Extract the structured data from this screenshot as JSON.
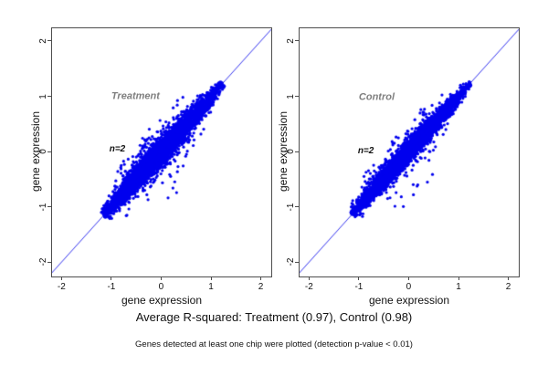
{
  "caption": "Average R-squared: Treatment (0.97), Control (0.98)",
  "footnote": "Genes detected at least one chip were plotted (detection p-value < 0.01)",
  "colors": {
    "background": "#ffffff",
    "point": "#0000ee",
    "ref_line": "#3434ee",
    "frame": "#4d4d4d",
    "tick_text": "#111111",
    "group_label": "#7f7f7f",
    "n_label": "#111111"
  },
  "chart_data": [
    {
      "type": "scatter",
      "group": "Treatment",
      "xlabel": "gene expression",
      "ylabel": "gene expression",
      "xlim": [
        -2.19,
        2.21
      ],
      "ylim": [
        -2.26,
        2.23
      ],
      "xticks": [
        -2,
        -1,
        0,
        1,
        2
      ],
      "yticks": [
        -2,
        -1,
        0,
        1,
        2
      ],
      "grid": false,
      "legend": "none",
      "reference_line": "y = x (identity)",
      "avg_r_squared": 0.97,
      "n_chips": 2,
      "data_extent_along_diagonal": [
        -1.16,
        1.24
      ],
      "annotations": [
        {
          "role": "group-label",
          "text": "Treatment",
          "x": -1.0,
          "y": 1.0,
          "size": 11
        },
        {
          "role": "n-label",
          "text": "n=2",
          "x": -1.04,
          "y": 0.04,
          "size": 10
        }
      ],
      "cloud": {
        "seed": 20240,
        "n": 4200,
        "t_mean": -0.08,
        "t_sd": 0.62,
        "t_min": -1.16,
        "t_max": 1.24,
        "width_max": 0.16,
        "width_min": 0.015,
        "width_span": 1.28,
        "noise": 1.0,
        "upper_outliers": 40,
        "lower_outliers": 24,
        "point_radius": 1.6
      }
    },
    {
      "type": "scatter",
      "group": "Control",
      "xlabel": "gene expression",
      "ylabel": "gene expression",
      "xlim": [
        -2.19,
        2.21
      ],
      "ylim": [
        -2.26,
        2.23
      ],
      "xticks": [
        -2,
        -1,
        0,
        1,
        2
      ],
      "yticks": [
        -2,
        -1,
        0,
        1,
        2
      ],
      "grid": false,
      "legend": "none",
      "reference_line": "y = x (identity)",
      "avg_r_squared": 0.98,
      "n_chips": 2,
      "data_extent_along_diagonal": [
        -1.14,
        1.25
      ],
      "annotations": [
        {
          "role": "group-label",
          "text": "Control",
          "x": -1.0,
          "y": 0.98,
          "size": 11
        },
        {
          "role": "n-label",
          "text": "n=2",
          "x": -1.02,
          "y": 0.0,
          "size": 10
        }
      ],
      "cloud": {
        "seed": 7713,
        "n": 4200,
        "t_mean": -0.08,
        "t_sd": 0.6,
        "t_min": -1.14,
        "t_max": 1.25,
        "width_max": 0.15,
        "width_min": 0.015,
        "width_span": 1.3,
        "noise": 0.85,
        "upper_outliers": 38,
        "lower_outliers": 24,
        "point_radius": 1.6
      }
    }
  ]
}
